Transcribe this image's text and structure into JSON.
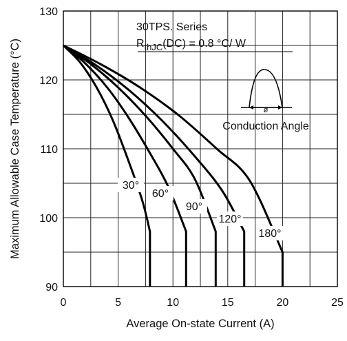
{
  "chart_data": {
    "type": "line",
    "title": "",
    "xlabel": "Average On-state Current (A)",
    "ylabel": "Maximum Allowable Case Temperature (°C)",
    "xlim": [
      0,
      25
    ],
    "ylim": [
      90,
      130
    ],
    "x_ticks": [
      0,
      5,
      10,
      15,
      20,
      25
    ],
    "y_ticks": [
      90,
      100,
      110,
      120,
      130
    ],
    "grid": true,
    "annotations": {
      "series_note": "30TPS. Series",
      "rth_label": "R",
      "rth_sub": "thJC",
      "rth_value": "(DC) = 0.8 °C/ W",
      "inset_caption": "Conduction Angle",
      "inset_symbol": "ø"
    },
    "series": [
      {
        "name": "30°",
        "x": [
          0,
          1.5,
          3,
          4.5,
          6,
          7.2,
          7.9,
          7.9
        ],
        "y": [
          125,
          122.6,
          119.0,
          114.2,
          108.0,
          102.5,
          98.0,
          90
        ]
      },
      {
        "name": "60°",
        "x": [
          0,
          2,
          4,
          6,
          8,
          9.6,
          11.2,
          11.2
        ],
        "y": [
          125,
          122.4,
          118.9,
          114.4,
          109.1,
          104.4,
          98.0,
          90
        ]
      },
      {
        "name": "90°",
        "x": [
          0,
          2.5,
          5,
          7.5,
          10,
          12,
          13.9,
          13.9
        ],
        "y": [
          125,
          122.3,
          118.9,
          114.8,
          110.0,
          105.6,
          98.0,
          90
        ]
      },
      {
        "name": "120°",
        "x": [
          0,
          3,
          6,
          9,
          12,
          14.5,
          16.5,
          16.5
        ],
        "y": [
          125,
          122.1,
          118.5,
          114.1,
          108.9,
          103.9,
          98.0,
          90
        ]
      },
      {
        "name": "180°",
        "x": [
          0,
          3.5,
          7,
          10.5,
          14,
          17,
          20,
          20
        ],
        "y": [
          125,
          122.2,
          118.9,
          114.9,
          110.0,
          105.4,
          95.0,
          90
        ]
      }
    ]
  }
}
